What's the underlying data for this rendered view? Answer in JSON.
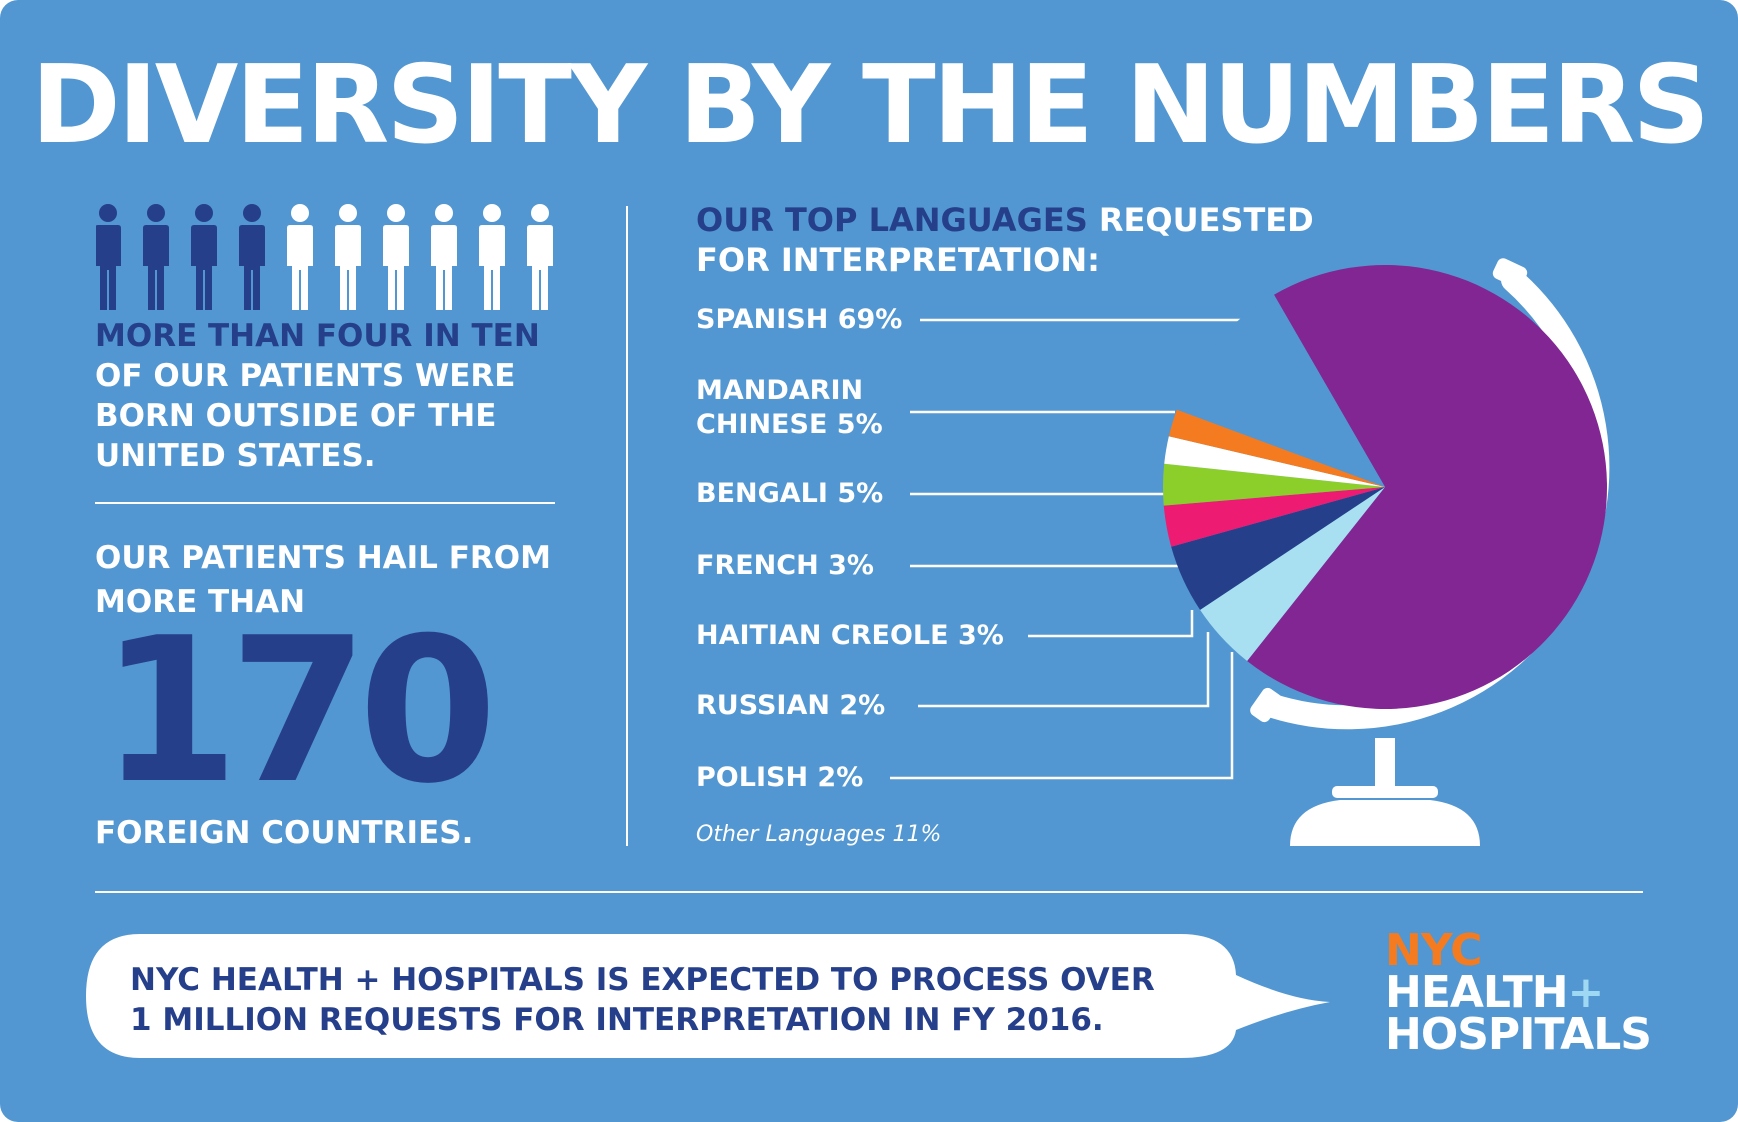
{
  "title": "DIVERSITY BY THE NUMBERS",
  "left_panel": {
    "people_total": 10,
    "people_highlighted": 4,
    "statement_highlight": "MORE THAN FOUR IN TEN",
    "statement_line2": "OF OUR PATIENTS WERE",
    "statement_line3": "BORN OUTSIDE OF THE",
    "statement_line4": "UNITED STATES.",
    "hail_line1": "OUR PATIENTS HAIL FROM",
    "hail_line2": "MORE THAN",
    "big_number": "170",
    "foreign_text": "FOREIGN COUNTRIES."
  },
  "languages": {
    "heading_highlight": "OUR TOP LANGUAGES",
    "heading_rest": " REQUESTED",
    "heading_line2": "FOR INTERPRETATION:",
    "spanish": "SPANISH 69%",
    "mandarin_line1": "MANDARIN",
    "mandarin_line2": "CHINESE 5%",
    "bengali": "BENGALI 5%",
    "french": "FRENCH 3%",
    "haitian": "HAITIAN CREOLE 3%",
    "russian": "RUSSIAN 2%",
    "polish": "POLISH 2%",
    "other": "Other Languages 11%"
  },
  "chart_data": {
    "type": "pie",
    "title": "OUR TOP LANGUAGES REQUESTED FOR INTERPRETATION:",
    "categories": [
      "SPANISH",
      "MANDARIN CHINESE",
      "BENGALI",
      "FRENCH",
      "HAITIAN CREOLE",
      "RUSSIAN",
      "POLISH",
      "Other Languages"
    ],
    "values": [
      69,
      5,
      5,
      3,
      3,
      2,
      2,
      11
    ],
    "colors": [
      "#812693",
      "#a8dff1",
      "#253f8b",
      "#ee1b72",
      "#8ccf2b",
      "#ffffff",
      "#f47b20",
      "#5297d1"
    ]
  },
  "footer": {
    "line1": "NYC HEALTH + HOSPITALS IS EXPECTED TO PROCESS OVER",
    "line2": "1 MILLION REQUESTS FOR INTERPRETATION IN FY 2016."
  },
  "logo": {
    "nyc": "NYC",
    "health": "HEALTH",
    "plus": "+",
    "hospitals": "HOSPITALS"
  },
  "colors": {
    "background": "#5297d1",
    "navy": "#253f8b",
    "white": "#ffffff",
    "orange": "#f47b20"
  }
}
